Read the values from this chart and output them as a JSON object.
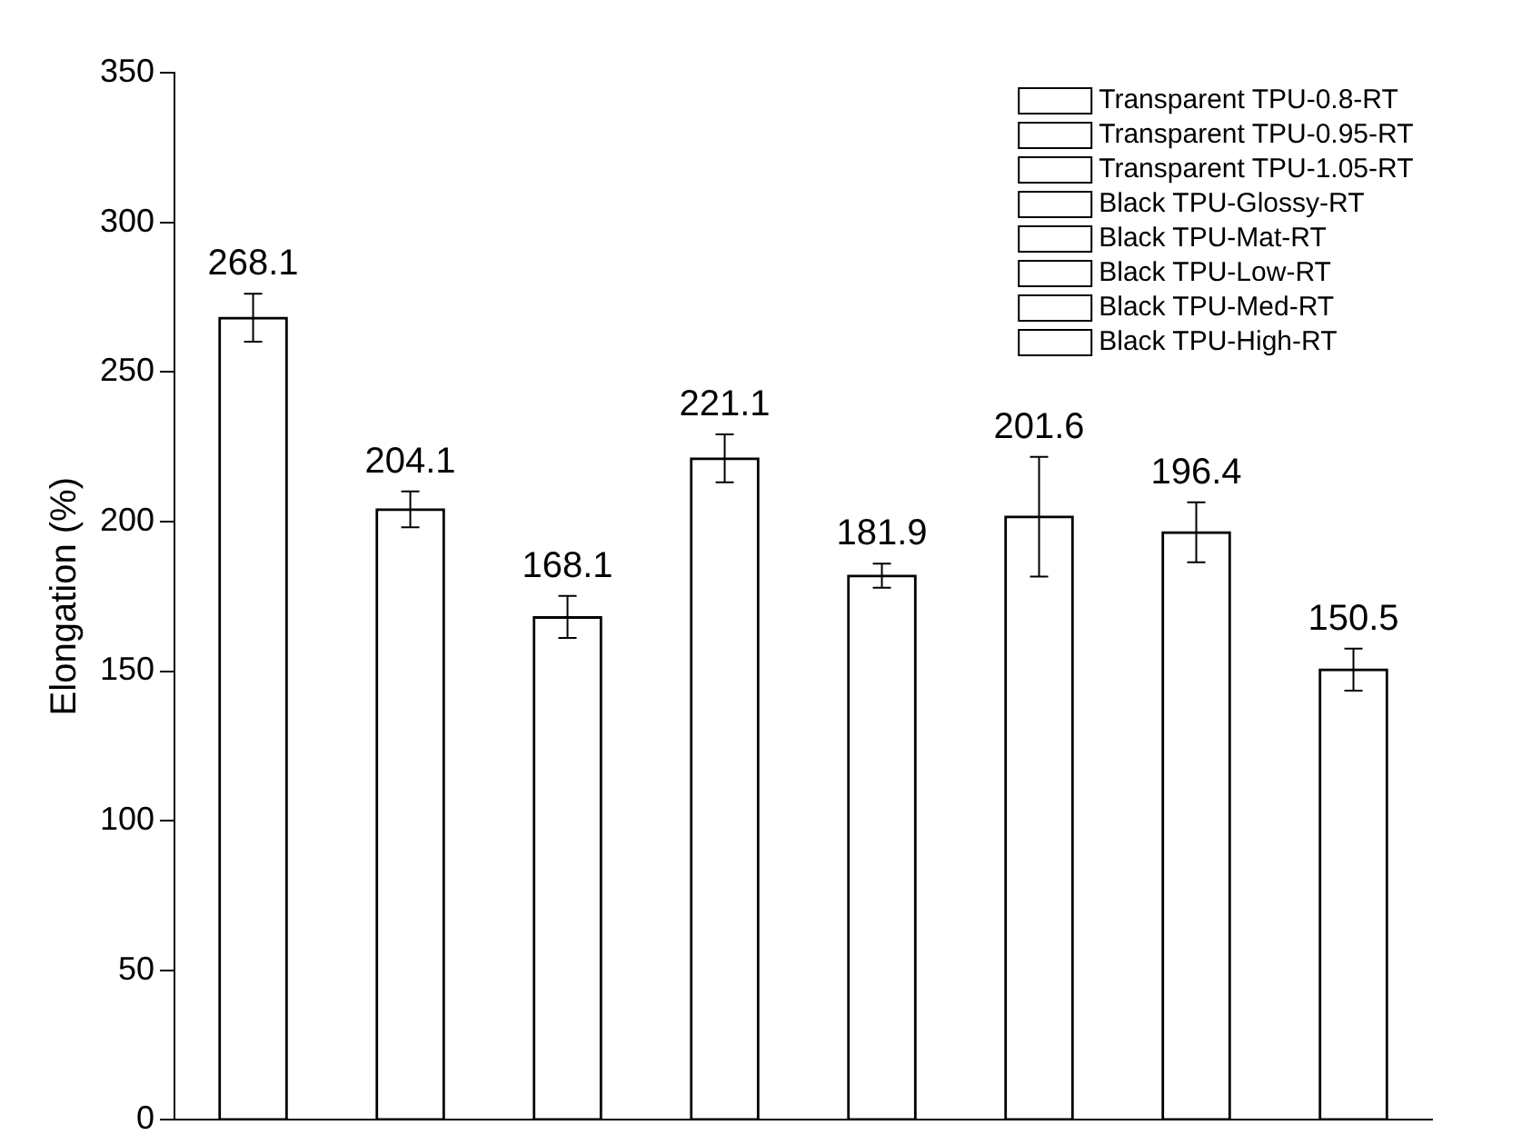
{
  "chart_data": {
    "type": "bar",
    "ylabel": "Elongation (%)",
    "categories": [
      null,
      null,
      null,
      null,
      null,
      null,
      null,
      null
    ],
    "series": [
      {
        "name": "Transparent TPU-0.8-RT",
        "color": "#000000",
        "values": [
          268.1,
          null,
          null,
          null,
          null,
          null,
          null,
          null
        ],
        "errors": [
          8,
          null,
          null,
          null,
          null,
          null,
          null,
          null
        ]
      },
      {
        "name": "Transparent TPU-0.95-RT",
        "color": "#000000",
        "values": [
          null,
          204.1,
          null,
          null,
          null,
          null,
          null,
          null
        ],
        "errors": [
          null,
          6,
          null,
          null,
          null,
          null,
          null,
          null
        ]
      },
      {
        "name": "Transparent TPU-1.05-RT",
        "color": "#000000",
        "values": [
          null,
          null,
          168.1,
          null,
          null,
          null,
          null,
          null
        ],
        "errors": [
          null,
          null,
          7,
          null,
          null,
          null,
          null,
          null
        ]
      },
      {
        "name": "Black TPU-Glossy-RT",
        "color": "#000000",
        "values": [
          null,
          null,
          null,
          221.1,
          null,
          null,
          null,
          null
        ],
        "errors": [
          null,
          null,
          null,
          8,
          null,
          null,
          null,
          null
        ]
      },
      {
        "name": "Black TPU-Mat-RT",
        "color": "#000000",
        "values": [
          null,
          null,
          null,
          null,
          181.9,
          null,
          null,
          null
        ],
        "errors": [
          null,
          null,
          null,
          null,
          4,
          null,
          null,
          null
        ]
      },
      {
        "name": "Black TPU-Low-RT",
        "color": "#000000",
        "values": [
          null,
          null,
          null,
          null,
          null,
          201.6,
          null,
          null
        ],
        "errors": [
          null,
          null,
          null,
          null,
          null,
          20,
          null,
          null
        ]
      },
      {
        "name": "Black TPU-Med-RT",
        "color": "#000000",
        "values": [
          null,
          null,
          null,
          null,
          null,
          null,
          196.4,
          null
        ],
        "errors": [
          null,
          null,
          null,
          null,
          null,
          null,
          10,
          null
        ]
      },
      {
        "name": "Black TPU-High-RT",
        "color": "#000000",
        "values": [
          null,
          null,
          null,
          null,
          null,
          null,
          null,
          150.5
        ],
        "errors": [
          null,
          null,
          null,
          null,
          null,
          null,
          null,
          7
        ]
      }
    ],
    "ylim": [
      0,
      350
    ],
    "yticks": [
      0,
      50,
      100,
      150,
      200,
      250,
      300,
      350
    ],
    "grid": false,
    "legend": "top right",
    "data_labels": true
  }
}
